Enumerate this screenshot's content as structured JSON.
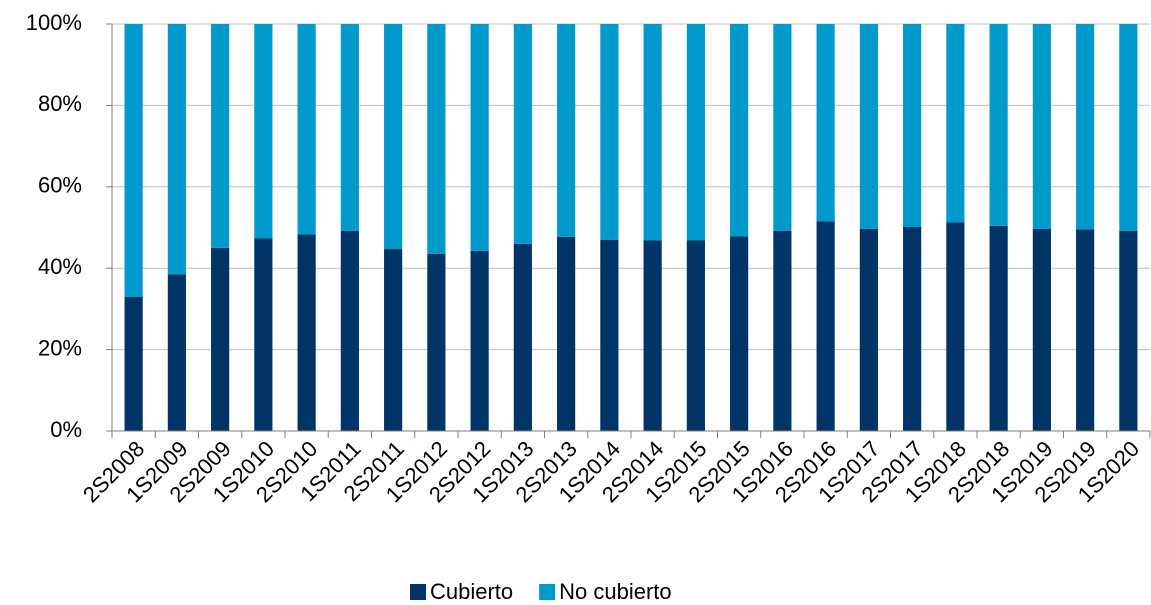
{
  "chart_data": {
    "type": "stacked_bar_100",
    "categories": [
      "2S2008",
      "1S2009",
      "2S2009",
      "1S2010",
      "2S2010",
      "1S2011",
      "2S2011",
      "1S2012",
      "2S2012",
      "1S2013",
      "2S2013",
      "1S2014",
      "2S2014",
      "1S2015",
      "2S2015",
      "1S2016",
      "2S2016",
      "1S2017",
      "2S2017",
      "1S2018",
      "2S2018",
      "1S2019",
      "2S2019",
      "1S2020"
    ],
    "series": [
      {
        "name": "Cubierto",
        "color": "#003366",
        "values": [
          33,
          38.5,
          45,
          47.3,
          48.3,
          49.2,
          44.7,
          43.5,
          44.3,
          46,
          47.7,
          47,
          46.8,
          46.8,
          47.8,
          49.2,
          51.5,
          49.7,
          50.2,
          51.3,
          50.4,
          49.7,
          49.5,
          49.2
        ]
      },
      {
        "name": "No cubierto",
        "color": "#0099cc",
        "values": [
          67,
          61.5,
          55,
          52.7,
          51.7,
          50.8,
          55.3,
          56.5,
          55.7,
          54,
          52.3,
          53,
          53.2,
          53.2,
          52.2,
          50.8,
          48.5,
          50.3,
          49.8,
          48.7,
          49.6,
          50.3,
          50.5,
          50.8
        ]
      }
    ],
    "ylim": [
      0,
      100
    ],
    "yticks": [
      {
        "value": 0,
        "label": "0%"
      },
      {
        "value": 20,
        "label": "20%"
      },
      {
        "value": 40,
        "label": "40%"
      },
      {
        "value": 60,
        "label": "60%"
      },
      {
        "value": 80,
        "label": "80%"
      },
      {
        "value": 100,
        "label": "100%"
      }
    ],
    "grid": true,
    "legend": "bottom"
  }
}
